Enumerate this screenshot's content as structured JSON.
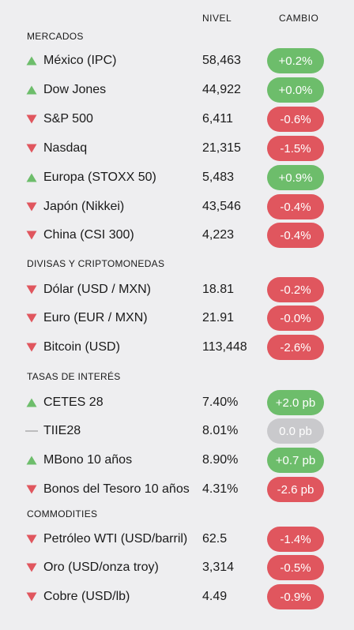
{
  "header": {
    "level_label": "NIVEL",
    "change_label": "CAMBIO"
  },
  "colors": {
    "up": "#6dbd6b",
    "down": "#e0565e",
    "flat": "#c9c9cc"
  },
  "sections": [
    {
      "title": "MERCADOS",
      "rows": [
        {
          "name": "México (IPC)",
          "level": "58,463",
          "change": "+0.2%",
          "direction": "up"
        },
        {
          "name": "Dow Jones",
          "level": "44,922",
          "change": "+0.0%",
          "direction": "up"
        },
        {
          "name": "S&P 500",
          "level": "6,411",
          "change": "-0.6%",
          "direction": "down"
        },
        {
          "name": "Nasdaq",
          "level": "21,315",
          "change": "-1.5%",
          "direction": "down"
        },
        {
          "name": "Europa (STOXX 50)",
          "level": "5,483",
          "change": "+0.9%",
          "direction": "up"
        },
        {
          "name": "Japón (Nikkei)",
          "level": "43,546",
          "change": "-0.4%",
          "direction": "down"
        },
        {
          "name": "China (CSI 300)",
          "level": "4,223",
          "change": "-0.4%",
          "direction": "down"
        }
      ]
    },
    {
      "title": "DIVISAS Y CRIPTOMONEDAS",
      "rows": [
        {
          "name": "Dólar (USD / MXN)",
          "level": "18.81",
          "change": "-0.2%",
          "direction": "down"
        },
        {
          "name": "Euro (EUR / MXN)",
          "level": "21.91",
          "change": "-0.0%",
          "direction": "down"
        },
        {
          "name": "Bitcoin (USD)",
          "level": "113,448",
          "change": "-2.6%",
          "direction": "down"
        }
      ]
    },
    {
      "title": "TASAS DE INTERÉS",
      "rows": [
        {
          "name": "CETES 28",
          "level": "7.40%",
          "change": "+2.0 pb",
          "direction": "up"
        },
        {
          "name": "TIIE28",
          "level": "8.01%",
          "change": "0.0 pb",
          "direction": "flat"
        },
        {
          "name": "MBono 10 años",
          "level": "8.90%",
          "change": "+0.7 pb",
          "direction": "up"
        },
        {
          "name": "Bonos del Tesoro 10 años",
          "level": "4.31%",
          "change": "-2.6 pb",
          "direction": "down"
        }
      ]
    },
    {
      "title": "COMMODITIES",
      "rows": [
        {
          "name": "Petróleo WTI (USD/barril)",
          "level": "62.5",
          "change": "-1.4%",
          "direction": "down"
        },
        {
          "name": "Oro (USD/onza troy)",
          "level": "3,314",
          "change": "-0.5%",
          "direction": "down"
        },
        {
          "name": "Cobre (USD/lb)",
          "level": "4.49",
          "change": "-0.9%",
          "direction": "down"
        }
      ]
    }
  ]
}
